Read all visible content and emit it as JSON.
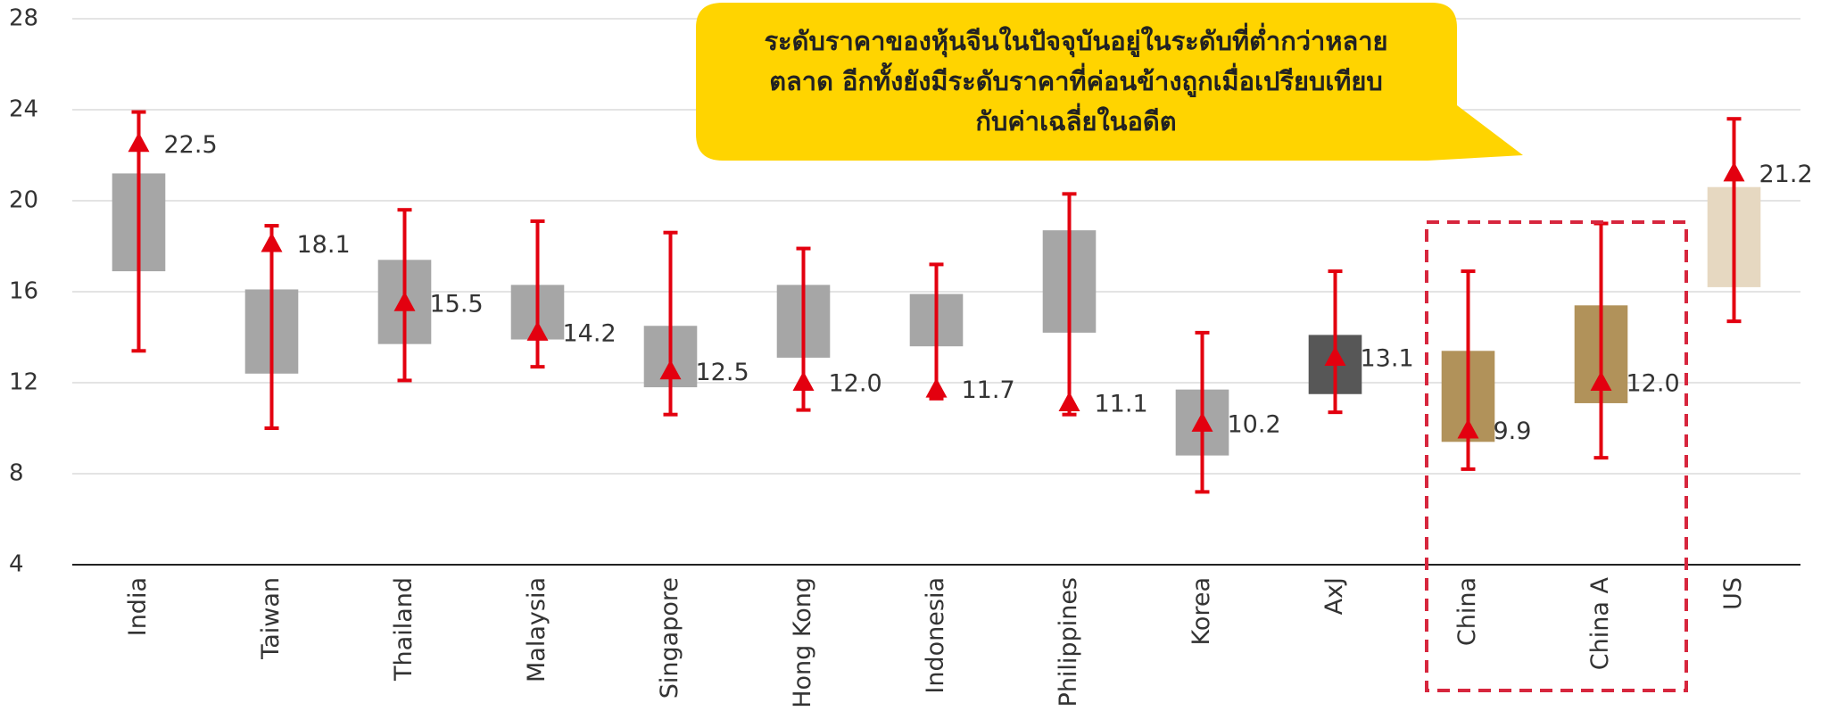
{
  "chart_data": {
    "type": "range",
    "categories": [
      "India",
      "Taiwan",
      "Thailand",
      "Malaysia",
      "Singapore",
      "Hong Kong",
      "Indonesia",
      "Philippines",
      "Korea",
      "AxJ",
      "China",
      "China A",
      "US"
    ],
    "values": [
      22.5,
      18.1,
      15.5,
      14.2,
      12.5,
      12.0,
      11.7,
      11.1,
      10.2,
      13.1,
      9.9,
      12.0,
      21.2
    ],
    "value_labels": [
      "22.5",
      "18.1",
      "15.5",
      "14.2",
      "12.5",
      "12.0",
      "11.7",
      "11.1",
      "10.2",
      "13.1",
      "9.9",
      "12.0",
      "21.2"
    ],
    "box_low": [
      16.9,
      12.4,
      13.7,
      13.9,
      11.8,
      13.1,
      13.6,
      14.2,
      8.8,
      11.5,
      9.4,
      11.1,
      16.2
    ],
    "box_high": [
      21.2,
      16.1,
      17.4,
      16.3,
      14.5,
      16.3,
      15.9,
      18.7,
      11.7,
      14.1,
      13.4,
      15.4,
      20.6
    ],
    "whisker_low": [
      13.4,
      10.0,
      12.1,
      12.7,
      10.6,
      10.8,
      11.3,
      10.6,
      7.2,
      10.7,
      8.2,
      8.7,
      14.7
    ],
    "whisker_high": [
      23.9,
      18.9,
      19.6,
      19.1,
      18.6,
      17.9,
      17.2,
      20.3,
      14.2,
      16.9,
      16.9,
      19.0,
      23.6
    ],
    "box_colors": [
      "#a6a6a6",
      "#a6a6a6",
      "#a6a6a6",
      "#a6a6a6",
      "#a6a6a6",
      "#a6a6a6",
      "#a6a6a6",
      "#a6a6a6",
      "#a6a6a6",
      "#575757",
      "#b1925a",
      "#b1925a",
      "#e6d8c1"
    ],
    "marker_color": "#e3000f",
    "ylim": [
      4,
      28
    ],
    "yticks": [
      4,
      8,
      12,
      16,
      20,
      24,
      28
    ],
    "grid": true,
    "annotation": [
      "ระดับราคาของหุ้นจีนในปัจจุบันอยู่ในระดับที่ต่ำกว่าหลาย",
      "ตลาด อีกทั้งยังมีระดับราคาที่ค่อนข้างถูกเมื่อเปรียบเทียบ",
      "กับค่าเฉลี่ยในอดีต"
    ]
  }
}
